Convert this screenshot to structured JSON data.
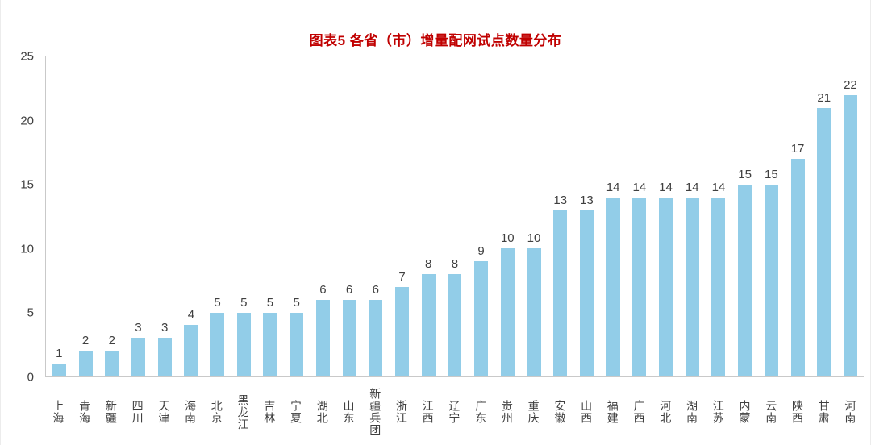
{
  "chart_data": {
    "type": "bar",
    "title": "图表5 各省（市）增量配网试点数量分布",
    "categories": [
      "上海",
      "青海",
      "新疆",
      "四川",
      "天津",
      "海南",
      "北京",
      "黑龙江",
      "吉林",
      "宁夏",
      "湖北",
      "山东",
      "新疆兵团",
      "浙江",
      "江西",
      "辽宁",
      "广东",
      "贵州",
      "重庆",
      "安徽",
      "山西",
      "福建",
      "广西",
      "河北",
      "湖南",
      "江苏",
      "内蒙",
      "云南",
      "陕西",
      "甘肃",
      "河南"
    ],
    "values": [
      1,
      2,
      2,
      3,
      3,
      4,
      5,
      5,
      5,
      5,
      6,
      6,
      6,
      7,
      8,
      8,
      9,
      10,
      10,
      13,
      13,
      14,
      14,
      14,
      14,
      14,
      15,
      15,
      17,
      21,
      22
    ],
    "xlabel": "",
    "ylabel": "",
    "ylim": [
      0,
      25
    ],
    "yticks": [
      0,
      5,
      10,
      15,
      20,
      25
    ],
    "grid": false,
    "legend": "none",
    "data_labels": true,
    "bar_color": "#92cde8",
    "title_color": "#c00000",
    "axis_text_color": "#404040",
    "axis_line_color": "#c9c9c9"
  }
}
